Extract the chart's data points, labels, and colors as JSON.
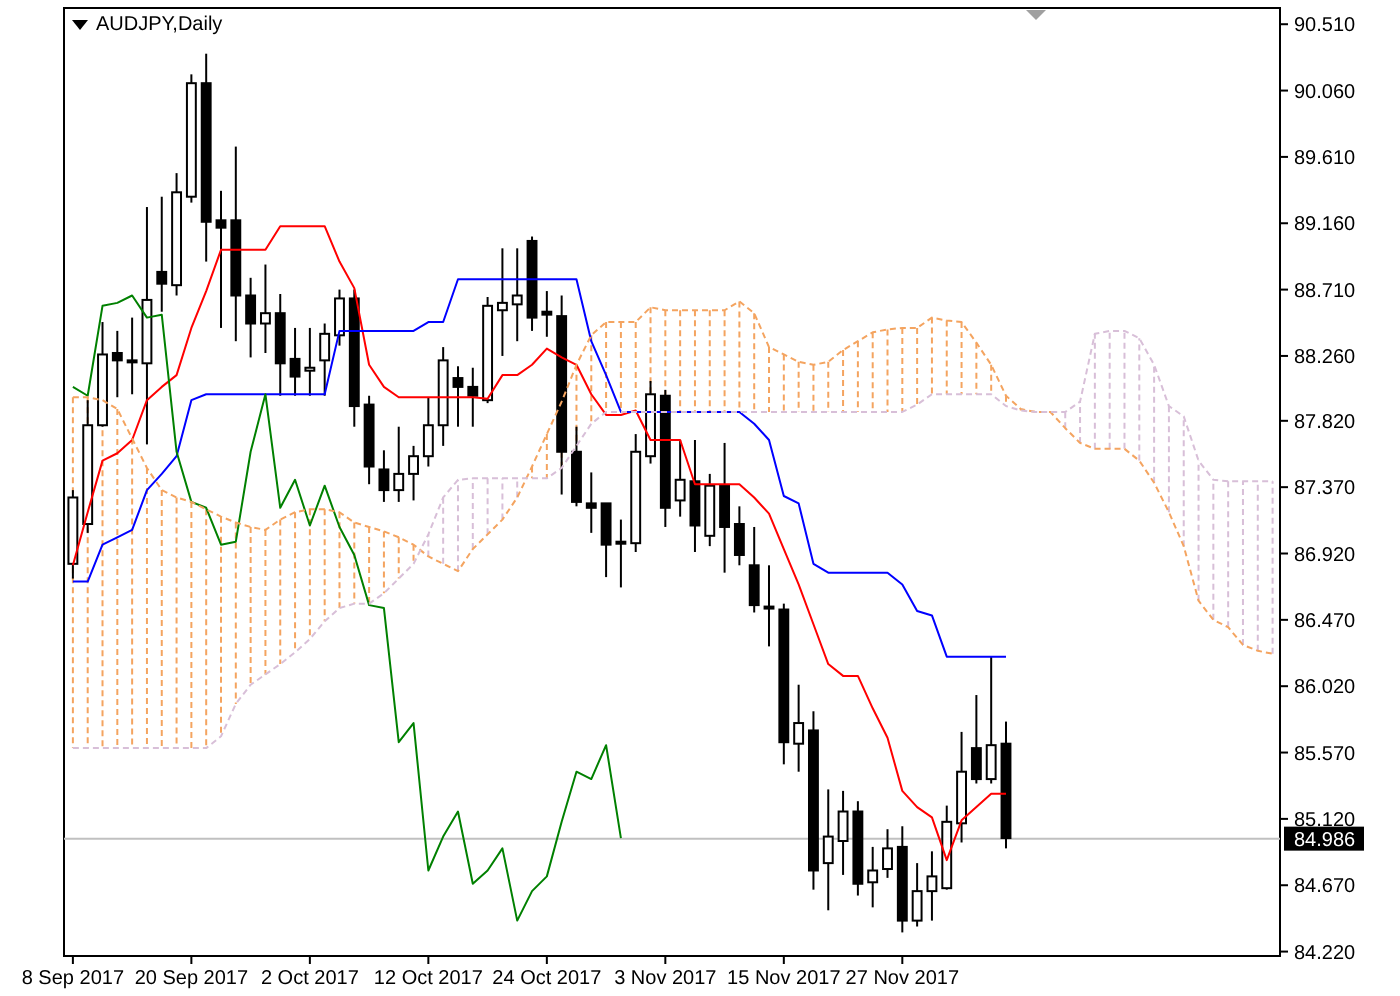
{
  "chart_data": {
    "type": "candlestick",
    "title": "AUDJPY,Daily",
    "categories": [
      "8 Sep 2017",
      null,
      null,
      null,
      null,
      null,
      null,
      null,
      "20 Sep 2017",
      null,
      null,
      null,
      null,
      null,
      null,
      null,
      "2 Oct 2017",
      null,
      null,
      null,
      null,
      null,
      null,
      null,
      "12 Oct 2017",
      null,
      null,
      null,
      null,
      null,
      null,
      null,
      "24 Oct 2017",
      null,
      null,
      null,
      null,
      null,
      null,
      null,
      "3 Nov 2017",
      null,
      null,
      null,
      null,
      null,
      null,
      null,
      "15 Nov 2017",
      null,
      null,
      null,
      null,
      null,
      null,
      null,
      "27 Nov 2017",
      null,
      null,
      null,
      null,
      null,
      null,
      null,
      null,
      null,
      null,
      null,
      null,
      null,
      null,
      null,
      null,
      null,
      null,
      null,
      null,
      null,
      null,
      null,
      null,
      null
    ],
    "ohlc": [
      [
        86.85,
        87.35,
        86.75,
        87.3
      ],
      [
        87.12,
        87.96,
        87.06,
        87.79
      ],
      [
        87.79,
        88.49,
        87.78,
        88.27
      ],
      [
        88.28,
        88.43,
        87.98,
        88.23
      ],
      [
        88.23,
        88.52,
        88.0,
        88.22
      ],
      [
        88.21,
        89.27,
        87.66,
        88.64
      ],
      [
        88.83,
        89.34,
        88.56,
        88.75
      ],
      [
        88.74,
        89.5,
        88.67,
        89.37
      ],
      [
        89.34,
        90.17,
        89.3,
        90.11
      ],
      [
        90.11,
        90.31,
        88.9,
        89.17
      ],
      [
        89.18,
        89.38,
        88.45,
        89.13
      ],
      [
        89.18,
        89.68,
        88.36,
        88.67
      ],
      [
        88.67,
        88.79,
        88.25,
        88.48
      ],
      [
        88.48,
        88.88,
        88.28,
        88.55
      ],
      [
        88.55,
        88.68,
        87.99,
        88.21
      ],
      [
        88.24,
        88.45,
        87.99,
        88.12
      ],
      [
        88.16,
        88.45,
        87.99,
        88.18
      ],
      [
        88.23,
        88.48,
        87.99,
        88.41
      ],
      [
        88.4,
        88.71,
        88.33,
        88.65
      ],
      [
        88.65,
        88.71,
        87.78,
        87.92
      ],
      [
        87.93,
        87.99,
        87.39,
        87.51
      ],
      [
        87.49,
        87.62,
        87.27,
        87.35
      ],
      [
        87.35,
        87.78,
        87.27,
        87.46
      ],
      [
        87.46,
        87.65,
        87.28,
        87.58
      ],
      [
        87.58,
        87.98,
        87.51,
        87.79
      ],
      [
        87.79,
        88.32,
        87.65,
        88.23
      ],
      [
        88.11,
        88.19,
        87.78,
        88.05
      ],
      [
        88.05,
        88.18,
        87.78,
        87.99
      ],
      [
        87.96,
        88.66,
        87.94,
        88.6
      ],
      [
        88.57,
        88.99,
        88.26,
        88.62
      ],
      [
        88.61,
        88.99,
        88.36,
        88.67
      ],
      [
        89.04,
        89.07,
        88.43,
        88.52
      ],
      [
        88.56,
        88.7,
        88.39,
        88.54
      ],
      [
        88.53,
        88.67,
        87.32,
        87.61
      ],
      [
        87.61,
        87.78,
        87.24,
        87.27
      ],
      [
        87.26,
        87.47,
        87.06,
        87.23
      ],
      [
        87.26,
        87.26,
        86.76,
        86.98
      ],
      [
        86.99,
        87.15,
        86.69,
        87.0
      ],
      [
        86.99,
        87.73,
        86.93,
        87.61
      ],
      [
        87.58,
        88.09,
        87.53,
        88.0
      ],
      [
        87.99,
        88.03,
        87.1,
        87.23
      ],
      [
        87.28,
        87.69,
        87.17,
        87.42
      ],
      [
        87.41,
        87.69,
        86.93,
        87.11
      ],
      [
        87.04,
        87.46,
        86.97,
        87.38
      ],
      [
        87.38,
        87.67,
        86.79,
        87.1
      ],
      [
        87.12,
        87.24,
        86.84,
        86.91
      ],
      [
        86.84,
        87.1,
        86.52,
        86.57
      ],
      [
        86.56,
        86.84,
        86.29,
        86.55
      ],
      [
        86.54,
        86.58,
        85.49,
        85.64
      ],
      [
        85.63,
        86.03,
        85.44,
        85.77
      ],
      [
        85.72,
        85.85,
        84.64,
        84.77
      ],
      [
        84.82,
        85.32,
        84.5,
        85.0
      ],
      [
        84.97,
        85.31,
        84.74,
        85.17
      ],
      [
        85.17,
        85.24,
        84.6,
        84.68
      ],
      [
        84.69,
        84.93,
        84.52,
        84.77
      ],
      [
        84.78,
        85.05,
        84.72,
        84.92
      ],
      [
        84.93,
        85.07,
        84.35,
        84.43
      ],
      [
        84.43,
        84.82,
        84.39,
        84.63
      ],
      [
        84.63,
        84.9,
        84.43,
        84.73
      ],
      [
        84.65,
        85.21,
        84.64,
        85.1
      ],
      [
        85.09,
        85.71,
        84.96,
        85.44
      ],
      [
        85.6,
        85.96,
        85.36,
        85.39
      ],
      [
        85.39,
        86.22,
        85.36,
        85.62
      ],
      [
        85.63,
        85.78,
        84.92,
        84.99
      ],
      null,
      null,
      null,
      null,
      null,
      null,
      null,
      null,
      null,
      null,
      null,
      null,
      null,
      null,
      null,
      null,
      null,
      null
    ],
    "series": [
      {
        "type": "line",
        "color": "#ff0000",
        "line_style": "solid",
        "values": [
          86.84,
          87.2,
          87.55,
          87.6,
          87.69,
          87.96,
          88.05,
          88.13,
          88.45,
          88.7,
          88.98,
          88.98,
          88.98,
          88.98,
          89.14,
          89.14,
          89.14,
          89.14,
          88.9,
          88.72,
          88.2,
          88.05,
          87.98,
          87.98,
          87.98,
          87.98,
          87.98,
          87.98,
          87.97,
          88.13,
          88.13,
          88.2,
          88.31,
          88.25,
          88.2,
          88.0,
          87.86,
          87.86,
          87.89,
          87.69,
          87.69,
          87.69,
          87.39,
          87.39,
          87.39,
          87.39,
          87.3,
          87.19,
          86.95,
          86.71,
          86.44,
          86.17,
          86.09,
          86.09,
          85.87,
          85.67,
          85.31,
          85.2,
          85.13,
          84.84,
          85.11,
          85.2,
          85.29,
          85.29,
          null,
          null,
          null,
          null,
          null,
          null,
          null,
          null,
          null,
          null,
          null,
          null,
          null,
          null,
          null,
          null,
          null,
          null
        ]
      },
      {
        "type": "line",
        "color": "#0000ff",
        "line_style": "solid",
        "values": [
          86.73,
          86.73,
          86.98,
          87.03,
          87.08,
          87.35,
          87.46,
          87.58,
          87.96,
          88.0,
          88.0,
          88.0,
          88.0,
          88.0,
          88.0,
          88.0,
          88.0,
          88.0,
          88.43,
          88.43,
          88.43,
          88.43,
          88.43,
          88.43,
          88.49,
          88.49,
          88.78,
          88.78,
          88.78,
          88.78,
          88.78,
          88.78,
          88.78,
          88.78,
          88.78,
          88.36,
          88.13,
          87.88,
          87.88,
          87.88,
          87.88,
          87.88,
          87.88,
          87.88,
          87.88,
          87.88,
          87.8,
          87.69,
          87.31,
          87.26,
          86.85,
          86.79,
          86.79,
          86.79,
          86.79,
          86.79,
          86.71,
          86.53,
          86.5,
          86.22,
          86.22,
          86.22,
          86.22,
          86.22,
          null,
          null,
          null,
          null,
          null,
          null,
          null,
          null,
          null,
          null,
          null,
          null,
          null,
          null,
          null,
          null,
          null,
          null
        ]
      },
      {
        "type": "line",
        "color": "#008000",
        "line_style": "solid",
        "values": [
          88.05,
          87.99,
          88.6,
          88.62,
          88.67,
          88.52,
          88.54,
          87.61,
          87.27,
          87.23,
          86.98,
          87.0,
          87.61,
          88.0,
          87.23,
          87.42,
          87.11,
          87.38,
          87.1,
          86.91,
          86.57,
          86.55,
          85.64,
          85.77,
          84.77,
          85.0,
          85.17,
          84.68,
          84.77,
          84.92,
          84.43,
          84.63,
          84.73,
          85.1,
          85.44,
          85.39,
          85.62,
          84.99,
          null,
          null,
          null,
          null,
          null,
          null,
          null,
          null,
          null,
          null,
          null,
          null,
          null,
          null,
          null,
          null,
          null,
          null,
          null,
          null,
          null,
          null,
          null,
          null,
          null,
          null,
          null,
          null,
          null,
          null,
          null,
          null,
          null,
          null,
          null,
          null,
          null,
          null,
          null,
          null,
          null,
          null,
          null,
          null
        ]
      },
      {
        "type": "line",
        "color": "#f4a460",
        "line_style": "dashed",
        "values": [
          87.98,
          87.98,
          87.96,
          87.9,
          87.7,
          87.5,
          87.35,
          87.3,
          87.27,
          87.22,
          87.17,
          87.13,
          87.1,
          87.08,
          87.15,
          87.2,
          87.22,
          87.22,
          87.2,
          87.13,
          87.1,
          87.07,
          87.03,
          86.98,
          86.9,
          86.85,
          86.8,
          86.95,
          87.05,
          87.15,
          87.3,
          87.51,
          87.73,
          87.95,
          88.2,
          88.4,
          88.49,
          88.49,
          88.49,
          88.59,
          88.57,
          88.57,
          88.57,
          88.57,
          88.57,
          88.63,
          88.55,
          88.32,
          88.27,
          88.22,
          88.2,
          88.22,
          88.3,
          88.36,
          88.42,
          88.44,
          88.45,
          88.45,
          88.52,
          88.5,
          88.49,
          88.35,
          88.2,
          87.99,
          87.9,
          87.88,
          87.88,
          87.77,
          87.67,
          87.63,
          87.63,
          87.63,
          87.55,
          87.4,
          87.2,
          86.97,
          86.6,
          86.47,
          86.42,
          86.3,
          86.26,
          86.24
        ]
      },
      {
        "type": "line",
        "color": "#d8bfd8",
        "line_style": "dashed",
        "values": [
          85.6,
          85.6,
          85.6,
          85.6,
          85.6,
          85.6,
          85.6,
          85.6,
          85.6,
          85.6,
          85.68,
          85.9,
          86.03,
          86.1,
          86.17,
          86.25,
          86.34,
          86.46,
          86.55,
          86.58,
          86.58,
          86.65,
          86.75,
          86.85,
          87.05,
          87.3,
          87.42,
          87.43,
          87.43,
          87.43,
          87.43,
          87.43,
          87.43,
          87.5,
          87.65,
          87.8,
          87.88,
          87.88,
          87.88,
          87.88,
          87.88,
          87.88,
          87.88,
          87.88,
          87.88,
          87.88,
          87.88,
          87.88,
          87.88,
          87.88,
          87.88,
          87.88,
          87.88,
          87.88,
          87.88,
          87.88,
          87.88,
          87.93,
          88.0,
          88.0,
          88.0,
          88.0,
          88.0,
          87.92,
          87.89,
          87.88,
          87.88,
          87.88,
          87.95,
          88.41,
          88.43,
          88.43,
          88.38,
          88.2,
          87.92,
          87.85,
          87.55,
          87.42,
          87.41,
          87.41,
          87.41,
          87.41
        ]
      }
    ],
    "ylim": [
      84.19,
      90.62
    ],
    "yticks": [
      {
        "value": 90.51,
        "label": "90.510"
      },
      {
        "value": 90.06,
        "label": "90.060"
      },
      {
        "value": 89.61,
        "label": "89.610"
      },
      {
        "value": 89.16,
        "label": "89.160"
      },
      {
        "value": 88.71,
        "label": "88.710"
      },
      {
        "value": 88.26,
        "label": "88.260"
      },
      {
        "value": 87.82,
        "label": "87.820"
      },
      {
        "value": 87.37,
        "label": "87.370"
      },
      {
        "value": 86.92,
        "label": "86.920"
      },
      {
        "value": 86.47,
        "label": "86.470"
      },
      {
        "value": 86.02,
        "label": "86.020"
      },
      {
        "value": 85.57,
        "label": "85.570"
      },
      {
        "value": 85.12,
        "label": "85.120"
      },
      {
        "value": 84.67,
        "label": "84.670"
      },
      {
        "value": 84.22,
        "label": "84.220"
      }
    ],
    "ref_lines": [
      {
        "axis": "y",
        "value": 84.986,
        "label": "84.986",
        "color": "#c0c0c0"
      }
    ]
  }
}
